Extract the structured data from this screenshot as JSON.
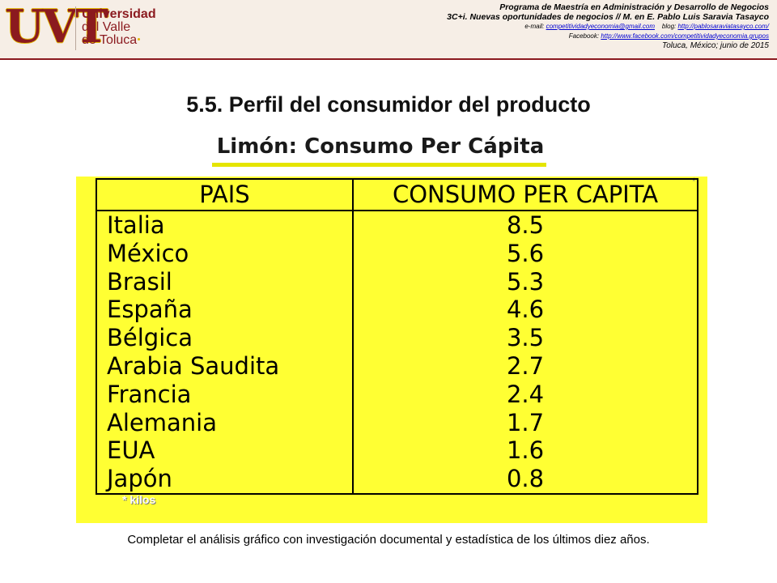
{
  "header": {
    "logo": {
      "abbr": "UVT",
      "name_lines": [
        "Universidad",
        "del Valle",
        "de Toluca"
      ]
    },
    "program_line": "Programa de Maestría en Administración y Desarrollo de Negocios",
    "course_line": "3C+i. Nuevas oportunidades de negocios // M. en E. Pablo Luis Saravia Tasayco",
    "email_label": "e-mail:",
    "email": "competitividadyeconomia@gmail.com",
    "blog_label": "blog:",
    "blog": "http://pablosaraviatasayco.com/",
    "facebook_label": "Facebook:",
    "facebook": "http://www.facebook.com/competitividadyeconomia.grupos",
    "place_date": "Toluca, México; junio de 2015"
  },
  "slide": {
    "section_title": "5.5. Perfil del consumidor del producto",
    "subtitle": "Limón: Consumo Per Cápita",
    "star_mark": "*",
    "table": {
      "headers": [
        "PAIS",
        "CONSUMO PER CAPITA"
      ],
      "rows": [
        {
          "pais": "Italia",
          "consumo": "8.5"
        },
        {
          "pais": "México",
          "consumo": "5.6"
        },
        {
          "pais": "Brasil",
          "consumo": "5.3"
        },
        {
          "pais": "España",
          "consumo": "4.6"
        },
        {
          "pais": "Bélgica",
          "consumo": "3.5"
        },
        {
          "pais": "Arabia Saudita",
          "consumo": "2.7"
        },
        {
          "pais": "Francia",
          "consumo": "2.4"
        },
        {
          "pais": "Alemania",
          "consumo": "1.7"
        },
        {
          "pais": "EUA",
          "consumo": "1.6"
        },
        {
          "pais": "Japón",
          "consumo": "0.8"
        }
      ]
    },
    "footnote": "* kilos",
    "caption": "Completar el análisis gráfico con investigación documental y estadística de los últimos diez años."
  },
  "colors": {
    "brand_red": "#8b1a1f",
    "brand_gold": "#e1b400",
    "panel_yellow": "#ffff33",
    "header_bg": "#f6eee6",
    "link_blue": "#0000d0"
  }
}
